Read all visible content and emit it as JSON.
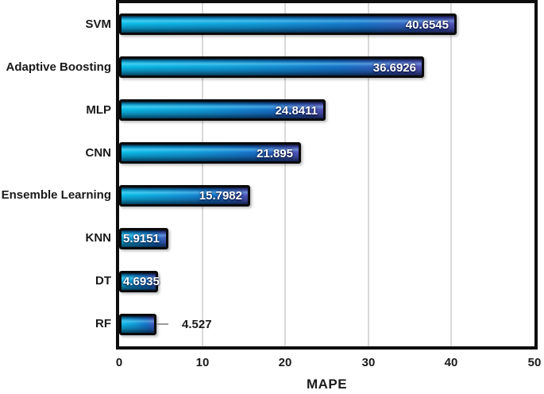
{
  "chart_data": {
    "type": "bar",
    "orientation": "horizontal",
    "title": "",
    "xlabel": "MAPE",
    "ylabel": "",
    "xlim": [
      0,
      50
    ],
    "xticks": [
      0,
      10,
      20,
      30,
      40,
      50
    ],
    "grid": "vertical",
    "legend": "none",
    "categories": [
      "SVM",
      "Adaptive Boosting",
      "MLP",
      "CNN",
      "Ensemble Learning",
      "KNN",
      "DT",
      "RF"
    ],
    "values": [
      40.6545,
      36.6926,
      24.8411,
      21.895,
      15.7982,
      5.9151,
      4.6935,
      4.527
    ],
    "value_labels": [
      "40.6545",
      "36.6926",
      "24.8411",
      "21.895",
      "15.7982",
      "5.9151",
      "4.6935",
      "4.527"
    ],
    "label_placement": [
      "inside-end",
      "inside-end",
      "inside-end",
      "inside-end",
      "inside-end",
      "inside-end",
      "inside-end",
      "outside-end"
    ],
    "error_whisker_on": "RF",
    "colors": {
      "bar_gradient_cyan": "#0cc0ea",
      "bar_gradient_blue": "#1877cc",
      "bar_gradient_purple": "#5a51b8",
      "bar_border": "#0a0a0a",
      "plot_border": "#0d0d0d",
      "gridline": "#d9d9d9",
      "inside_label": "#ffffff",
      "outside_label": "#1a1a1a",
      "background": "#ffffff"
    }
  }
}
